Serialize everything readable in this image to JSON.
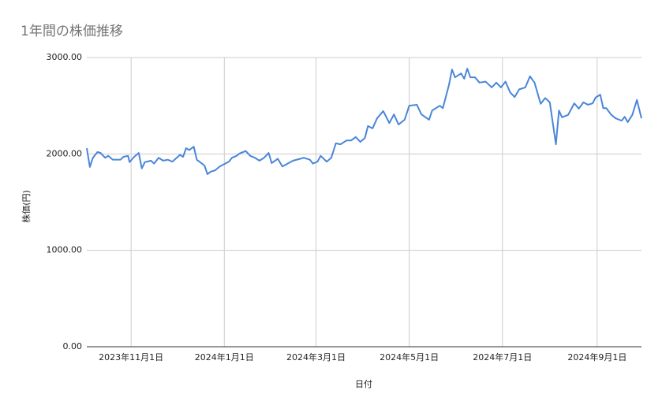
{
  "chart_data": {
    "type": "line",
    "title": "1年間の株価推移",
    "x_label": "日付",
    "y_label": "株価(円)",
    "color": "#4a86d8",
    "grid": true,
    "xlim": [
      "2023-10-03",
      "2024-09-30"
    ],
    "xticks": [
      {
        "value": "2023-11-01",
        "label": "2023年11月1日"
      },
      {
        "value": "2024-01-01",
        "label": "2024年1月1日"
      },
      {
        "value": "2024-03-01",
        "label": "2024年3月1日"
      },
      {
        "value": "2024-05-01",
        "label": "2024年5月1日"
      },
      {
        "value": "2024-07-01",
        "label": "2024年7月1日"
      },
      {
        "value": "2024-09-01",
        "label": "2024年9月1日"
      }
    ],
    "ylim": [
      0,
      3000
    ],
    "yticks": [
      {
        "value": 0,
        "label": "0.00"
      },
      {
        "value": 1000,
        "label": "1000.00"
      },
      {
        "value": 2000,
        "label": "2000.00"
      },
      {
        "value": 3000,
        "label": "3000.00"
      }
    ],
    "x": [
      "2023-10-03",
      "2023-10-05",
      "2023-10-07",
      "2023-10-10",
      "2023-10-12",
      "2023-10-15",
      "2023-10-17",
      "2023-10-20",
      "2023-10-25",
      "2023-10-27",
      "2023-10-30",
      "2023-10-31",
      "2023-11-03",
      "2023-11-06",
      "2023-11-08",
      "2023-11-10",
      "2023-11-14",
      "2023-11-16",
      "2023-11-19",
      "2023-11-22",
      "2023-11-25",
      "2023-11-28",
      "2023-12-03",
      "2023-12-05",
      "2023-12-07",
      "2023-12-09",
      "2023-12-12",
      "2023-12-14",
      "2023-12-19",
      "2023-12-21",
      "2023-12-23",
      "2023-12-26",
      "2023-12-29",
      "2024-01-04",
      "2024-01-06",
      "2024-01-09",
      "2024-01-11",
      "2024-01-15",
      "2024-01-18",
      "2024-01-21",
      "2024-01-24",
      "2024-01-27",
      "2024-01-30",
      "2024-02-01",
      "2024-02-05",
      "2024-02-08",
      "2024-02-12",
      "2024-02-15",
      "2024-02-22",
      "2024-02-26",
      "2024-02-28",
      "2024-03-02",
      "2024-03-04",
      "2024-03-08",
      "2024-03-11",
      "2024-03-14",
      "2024-03-17",
      "2024-03-21",
      "2024-03-24",
      "2024-03-27",
      "2024-03-30",
      "2024-04-02",
      "2024-04-04",
      "2024-04-07",
      "2024-04-10",
      "2024-04-14",
      "2024-04-18",
      "2024-04-21",
      "2024-04-24",
      "2024-04-28",
      "2024-05-01",
      "2024-05-06",
      "2024-05-09",
      "2024-05-14",
      "2024-05-16",
      "2024-05-21",
      "2024-05-23",
      "2024-05-27",
      "2024-05-29",
      "2024-05-31",
      "2024-06-04",
      "2024-06-06",
      "2024-06-08",
      "2024-06-10",
      "2024-06-13",
      "2024-06-16",
      "2024-06-20",
      "2024-06-24",
      "2024-06-27",
      "2024-06-30",
      "2024-07-03",
      "2024-07-06",
      "2024-07-09",
      "2024-07-12",
      "2024-07-16",
      "2024-07-19",
      "2024-07-22",
      "2024-07-26",
      "2024-07-29",
      "2024-08-01",
      "2024-08-05",
      "2024-08-07",
      "2024-08-09",
      "2024-08-13",
      "2024-08-17",
      "2024-08-20",
      "2024-08-23",
      "2024-08-26",
      "2024-08-29",
      "2024-08-31",
      "2024-09-03",
      "2024-09-05",
      "2024-09-07",
      "2024-09-10",
      "2024-09-13",
      "2024-09-17",
      "2024-09-19",
      "2024-09-21",
      "2024-09-24",
      "2024-09-27",
      "2024-09-30"
    ],
    "values": [
      2060,
      1865,
      1960,
      2020,
      2010,
      1960,
      1980,
      1940,
      1940,
      1970,
      1980,
      1915,
      1970,
      2010,
      1850,
      1915,
      1930,
      1900,
      1960,
      1930,
      1940,
      1920,
      1990,
      1970,
      2060,
      2040,
      2075,
      1940,
      1880,
      1790,
      1815,
      1830,
      1870,
      1920,
      1960,
      1980,
      2005,
      2030,
      1980,
      1960,
      1930,
      1960,
      2010,
      1905,
      1950,
      1870,
      1905,
      1930,
      1960,
      1940,
      1900,
      1920,
      1980,
      1920,
      1960,
      2110,
      2100,
      2140,
      2140,
      2175,
      2125,
      2165,
      2290,
      2265,
      2370,
      2445,
      2320,
      2410,
      2305,
      2355,
      2500,
      2510,
      2410,
      2355,
      2450,
      2500,
      2475,
      2715,
      2875,
      2795,
      2835,
      2780,
      2885,
      2795,
      2795,
      2740,
      2750,
      2690,
      2740,
      2690,
      2750,
      2640,
      2590,
      2670,
      2690,
      2805,
      2740,
      2520,
      2580,
      2535,
      2100,
      2450,
      2380,
      2405,
      2525,
      2470,
      2535,
      2510,
      2525,
      2585,
      2615,
      2475,
      2475,
      2410,
      2370,
      2345,
      2385,
      2330,
      2405,
      2560,
      2370
    ]
  }
}
